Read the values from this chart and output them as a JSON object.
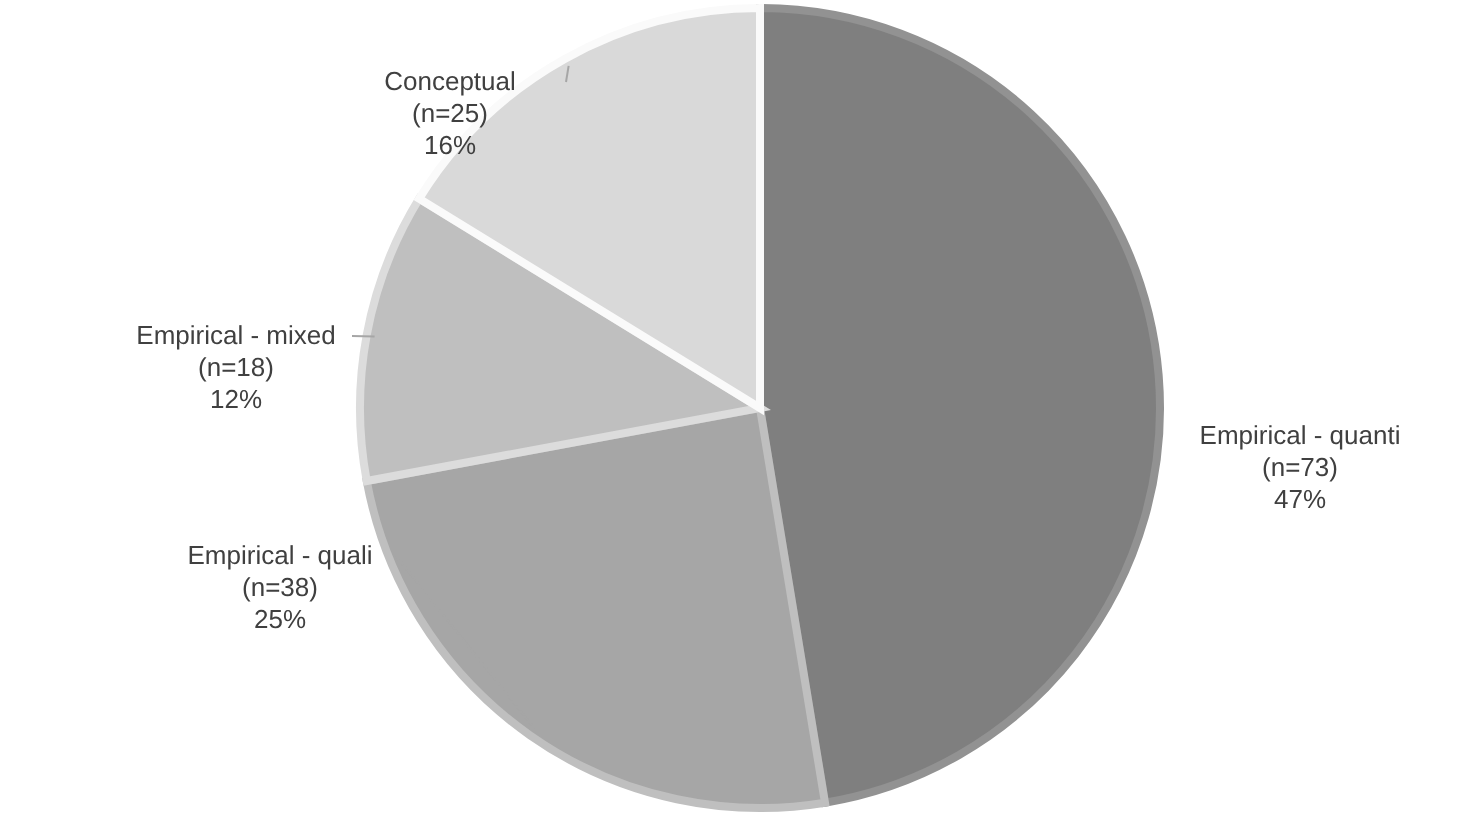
{
  "chart_data": {
    "type": "pie",
    "categories": [
      "Empirical - quanti",
      "Empirical - quali",
      "Empirical - mixed",
      "Conceptual"
    ],
    "values": [
      73,
      38,
      18,
      25
    ],
    "colors": [
      "#7f7f7f",
      "#a6a6a6",
      "#bfbfbf",
      "#d9d9d9"
    ],
    "value_labels": [
      "(n=73) 47%",
      "(n=38) 25%",
      "(n=18) 12%",
      "(n=25) 16%"
    ],
    "legend": false
  }
}
